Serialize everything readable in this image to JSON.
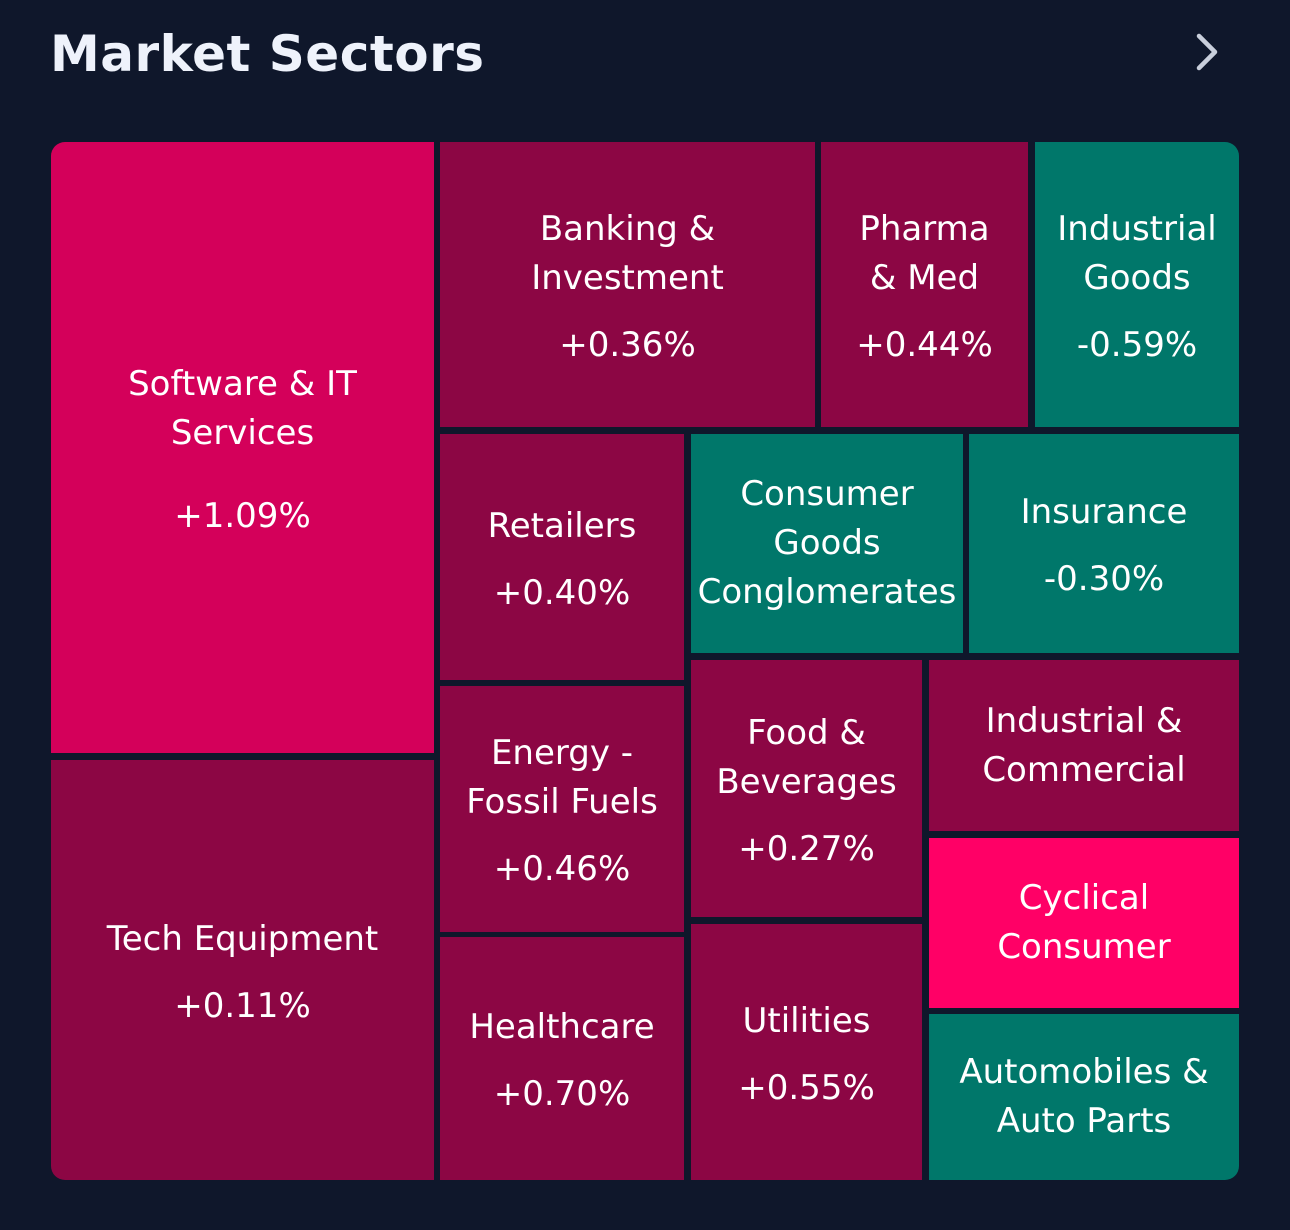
{
  "header": {
    "title": "Market Sectors",
    "chevron_icon": "chevron-right-icon"
  },
  "colors": {
    "background": "#0f172b",
    "positive_strong": "#d4005a",
    "positive": "#8c0644",
    "positive_bright": "#ff0066",
    "negative": "#00776a"
  },
  "sectors": [
    {
      "name": "Software & IT Services",
      "change": "+1.09%"
    },
    {
      "name": "Banking &\nInvestment",
      "change": "+0.36%"
    },
    {
      "name": "Pharma\n& Med",
      "change": "+0.44%"
    },
    {
      "name": "Industrial\nGoods",
      "change": "-0.59%"
    },
    {
      "name": "Retailers",
      "change": "+0.40%"
    },
    {
      "name": "Consumer\nGoods\nConglomerates",
      "change": ""
    },
    {
      "name": "Insurance",
      "change": "-0.30%"
    },
    {
      "name": "Tech Equipment",
      "change": "+0.11%"
    },
    {
      "name": "Energy -\nFossil Fuels",
      "change": "+0.46%"
    },
    {
      "name": "Food &\nBeverages",
      "change": "+0.27%"
    },
    {
      "name": "Industrial &\nCommercial",
      "change": ""
    },
    {
      "name": "Cyclical\nConsumer",
      "change": ""
    },
    {
      "name": "Healthcare",
      "change": "+0.70%"
    },
    {
      "name": "Utilities",
      "change": "+0.55%"
    },
    {
      "name": "Automobiles &\nAuto Parts",
      "change": ""
    }
  ]
}
